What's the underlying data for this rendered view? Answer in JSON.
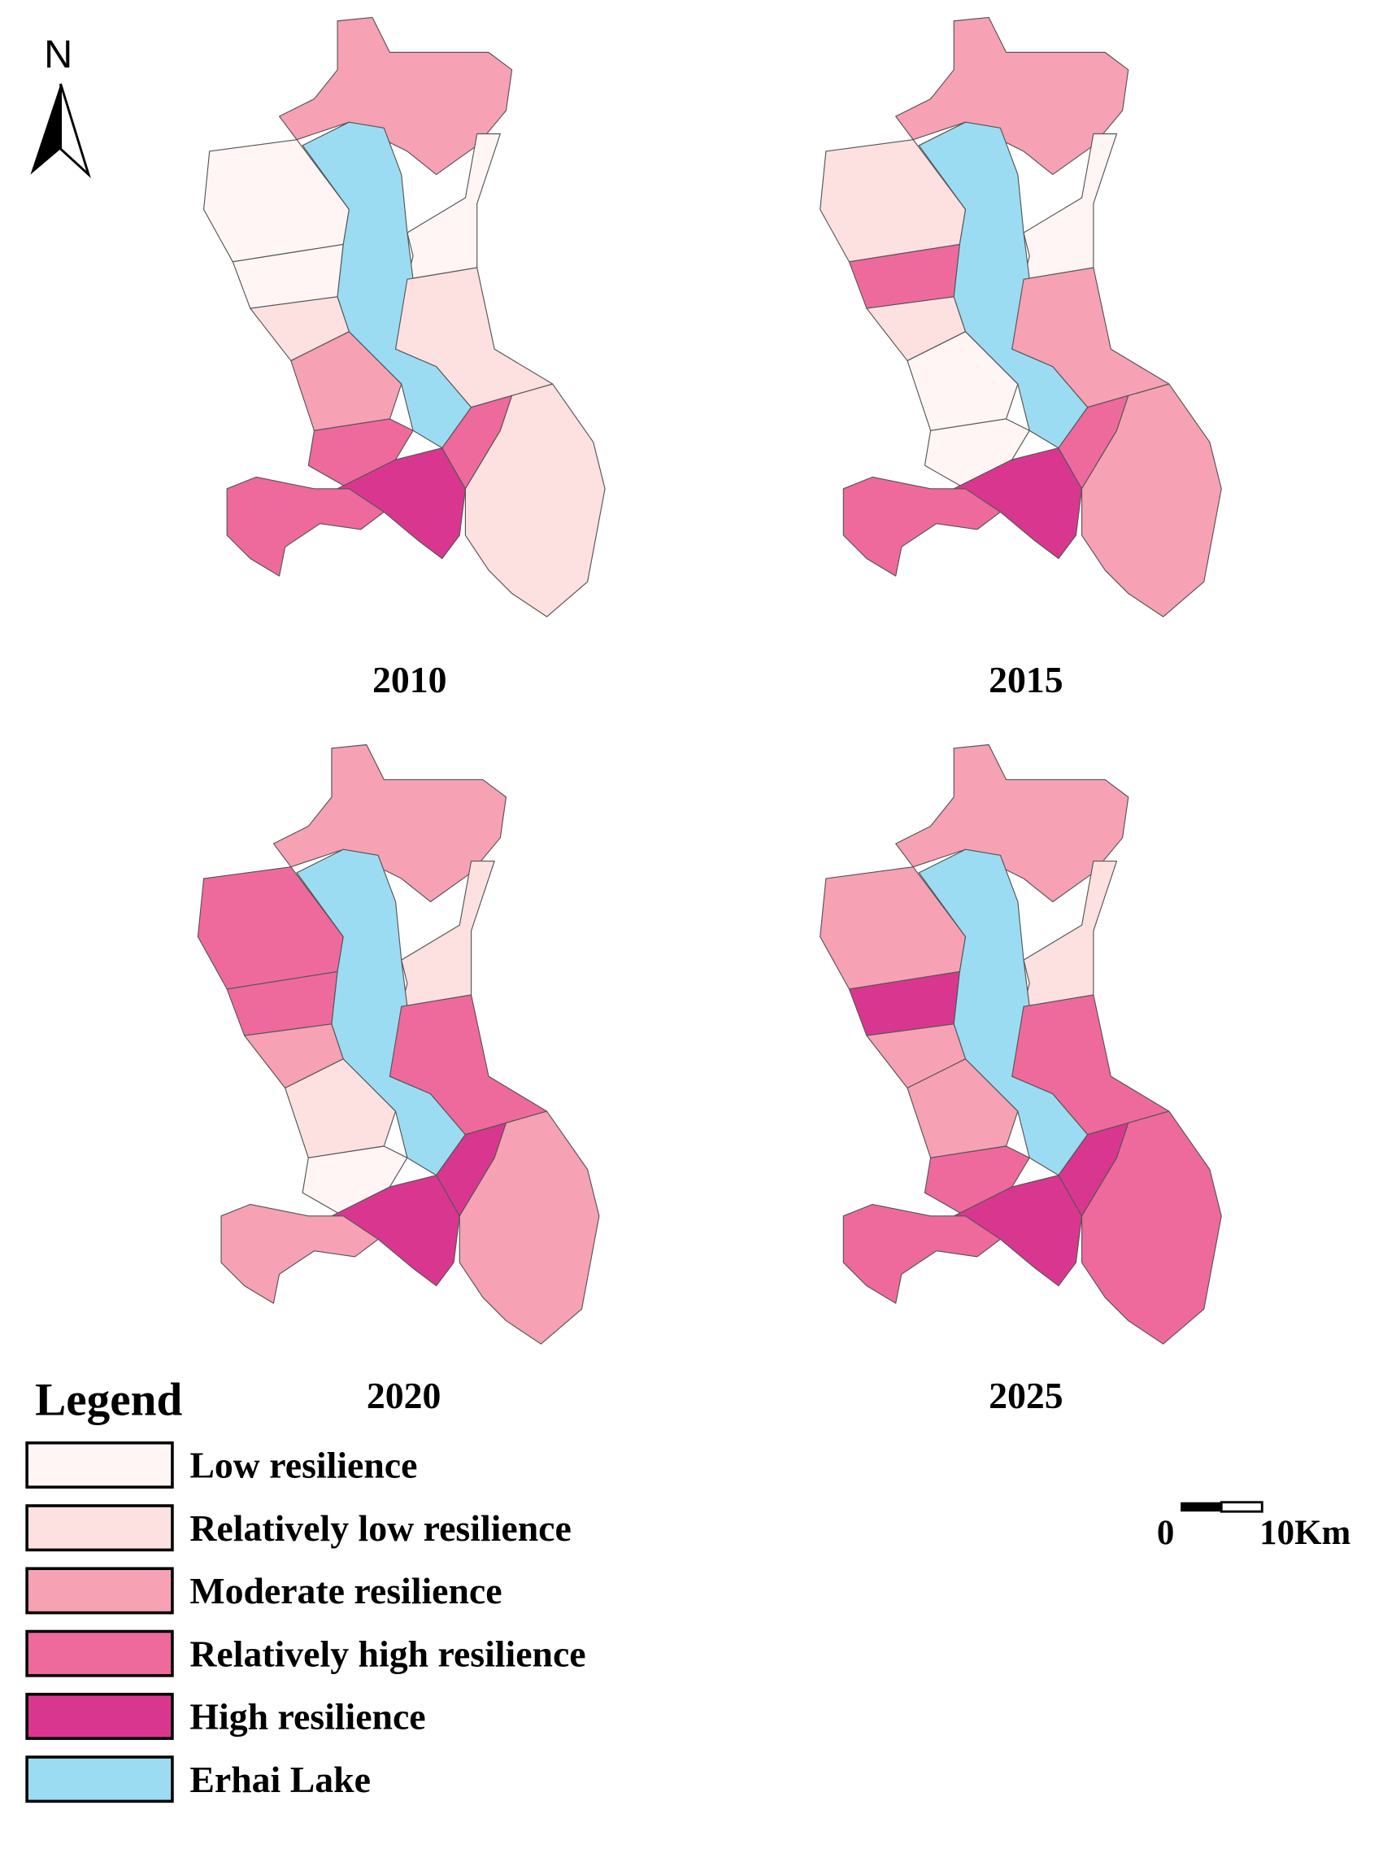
{
  "north": "N",
  "panels": [
    {
      "title": "2010"
    },
    {
      "title": "2015"
    },
    {
      "title": "2020"
    },
    {
      "title": "2025"
    }
  ],
  "legend": {
    "title": "Legend",
    "items": [
      {
        "label": "Low resilience",
        "color": "#fff5f5"
      },
      {
        "label": "Relatively low resilience",
        "color": "#fde0e0"
      },
      {
        "label": "Moderate resilience",
        "color": "#f7a1b5"
      },
      {
        "label": "Relatively high resilience",
        "color": "#ef6a9c"
      },
      {
        "label": "High resilience",
        "color": "#d9378f"
      },
      {
        "label": "Erhai Lake",
        "color": "#9cdcf2"
      }
    ]
  },
  "scale_bar": {
    "start": "0",
    "end": "10Km"
  }
}
